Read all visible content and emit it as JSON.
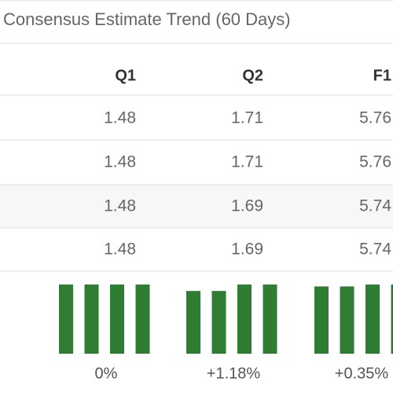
{
  "header": {
    "title": "Consensus Estimate Trend (60 Days)"
  },
  "table": {
    "columns": [
      "Q1",
      "Q2",
      "F1"
    ],
    "rows": [
      [
        1.48,
        1.71,
        5.76
      ],
      [
        1.48,
        1.71,
        5.76
      ],
      [
        1.48,
        1.69,
        5.74
      ],
      [
        1.48,
        1.69,
        5.74
      ]
    ],
    "changes": [
      "0%",
      "+1.18%",
      "+0.35%"
    ],
    "bar_color": "#2f7d32"
  }
}
